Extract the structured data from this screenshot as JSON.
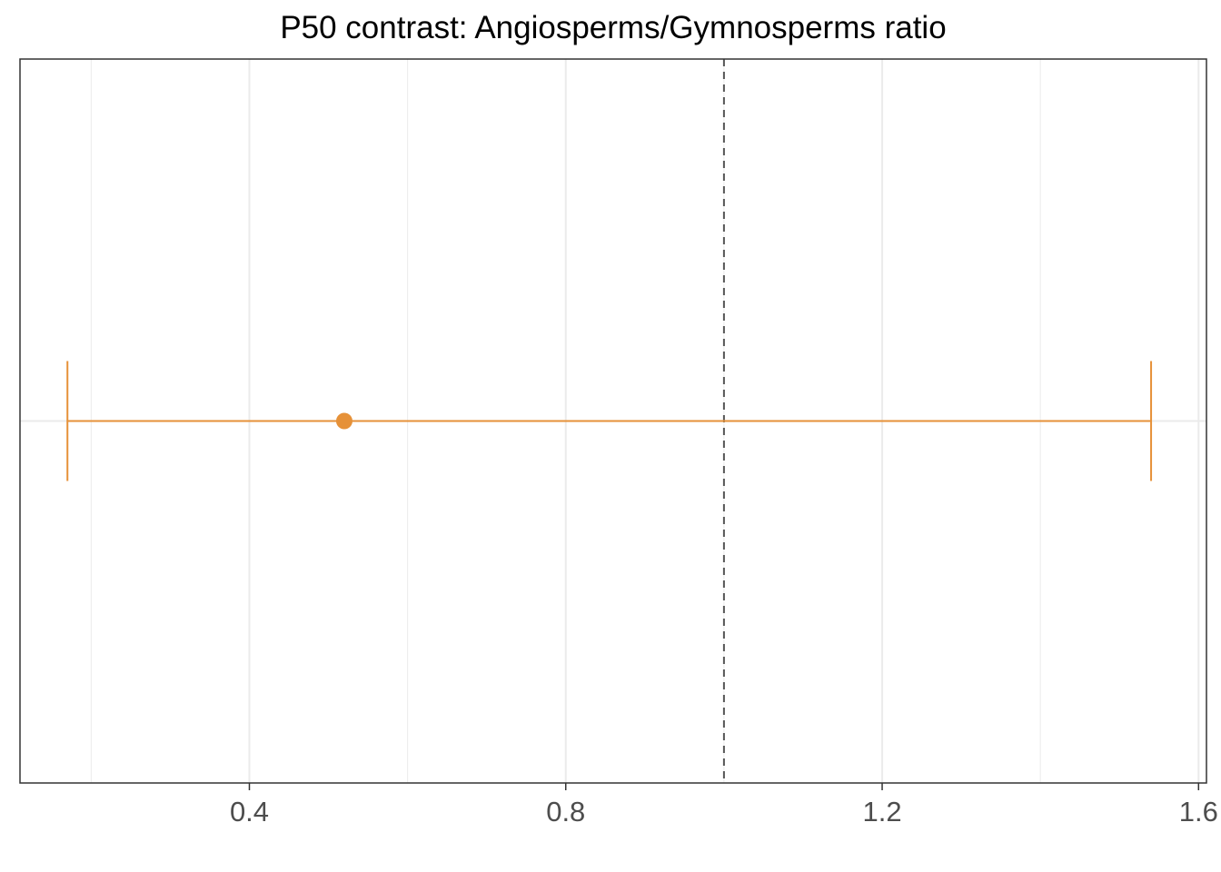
{
  "chart_data": {
    "type": "errorbar",
    "title": "P50 contrast: Angiosperms/Gymnosperms ratio",
    "xlabel": "",
    "ylabel": "",
    "xlim": [
      0.11,
      1.61
    ],
    "x_ticks": [
      0.4,
      0.8,
      1.2,
      1.6
    ],
    "x_tick_labels": [
      "0.4",
      "0.8",
      "1.2",
      "1.6"
    ],
    "minor_grid": [
      0.2,
      0.6,
      1.0,
      1.4
    ],
    "reference_line": {
      "x": 1.0,
      "style": "dashed"
    },
    "points": [
      {
        "estimate": 0.52,
        "lower": 0.17,
        "upper": 1.54
      }
    ],
    "grid": true,
    "colors": {
      "series": "#E69138",
      "grid": "#ebebeb",
      "reference": "#555555",
      "panel_border": "#333333"
    }
  }
}
